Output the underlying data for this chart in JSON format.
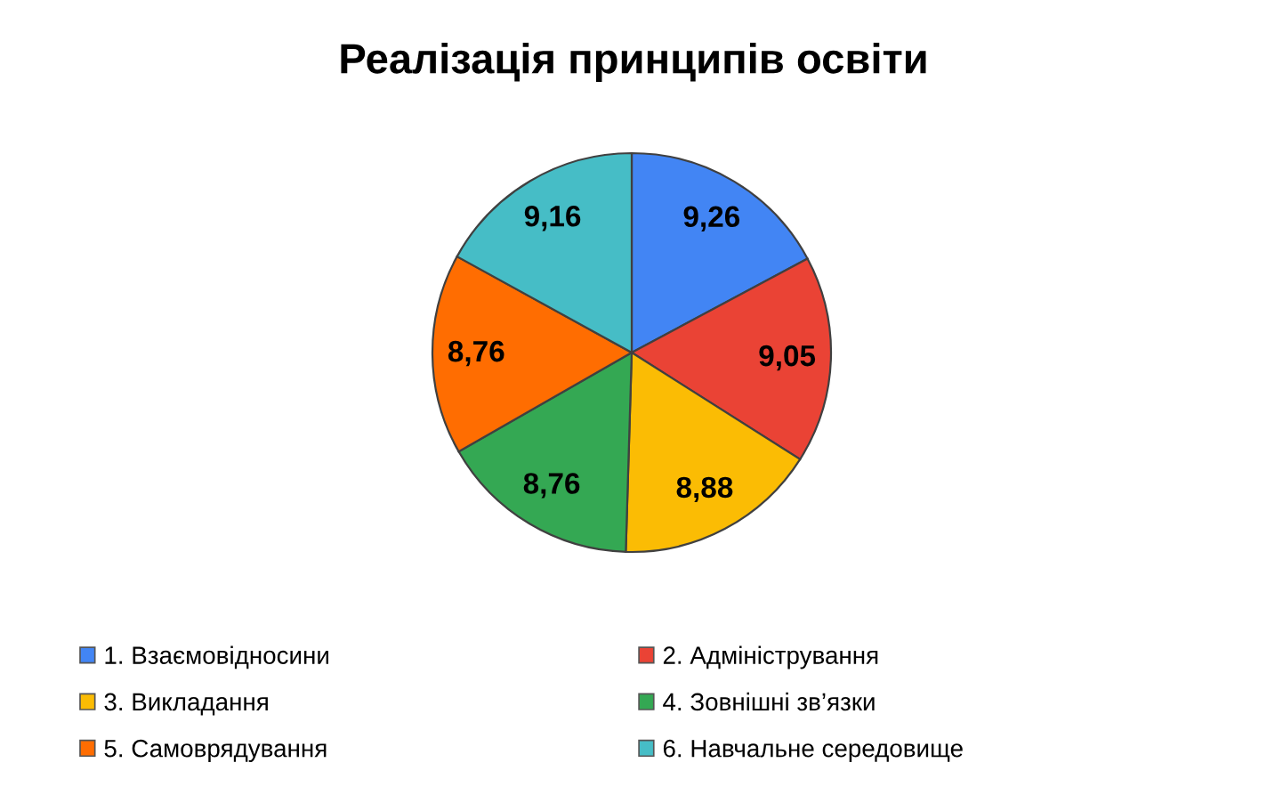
{
  "chart_data": {
    "type": "pie",
    "title": "Реалізація принципів освіти",
    "categories": [
      "1. Взаємовідносини",
      "2. Адміністрування",
      "3. Викладання",
      "4. Зовнішні зв’язки",
      "5. Самоврядування",
      "6. Навчальне середовище"
    ],
    "values": [
      9.26,
      9.05,
      8.88,
      8.76,
      8.76,
      9.16
    ],
    "value_labels": [
      "9,26",
      "9,05",
      "8,88",
      "8,76",
      "8,76",
      "9,16"
    ],
    "colors": [
      "#4285f4",
      "#ea4335",
      "#fbbc04",
      "#34a853",
      "#ff6d01",
      "#46bdc6"
    ],
    "legend": "bottom"
  }
}
